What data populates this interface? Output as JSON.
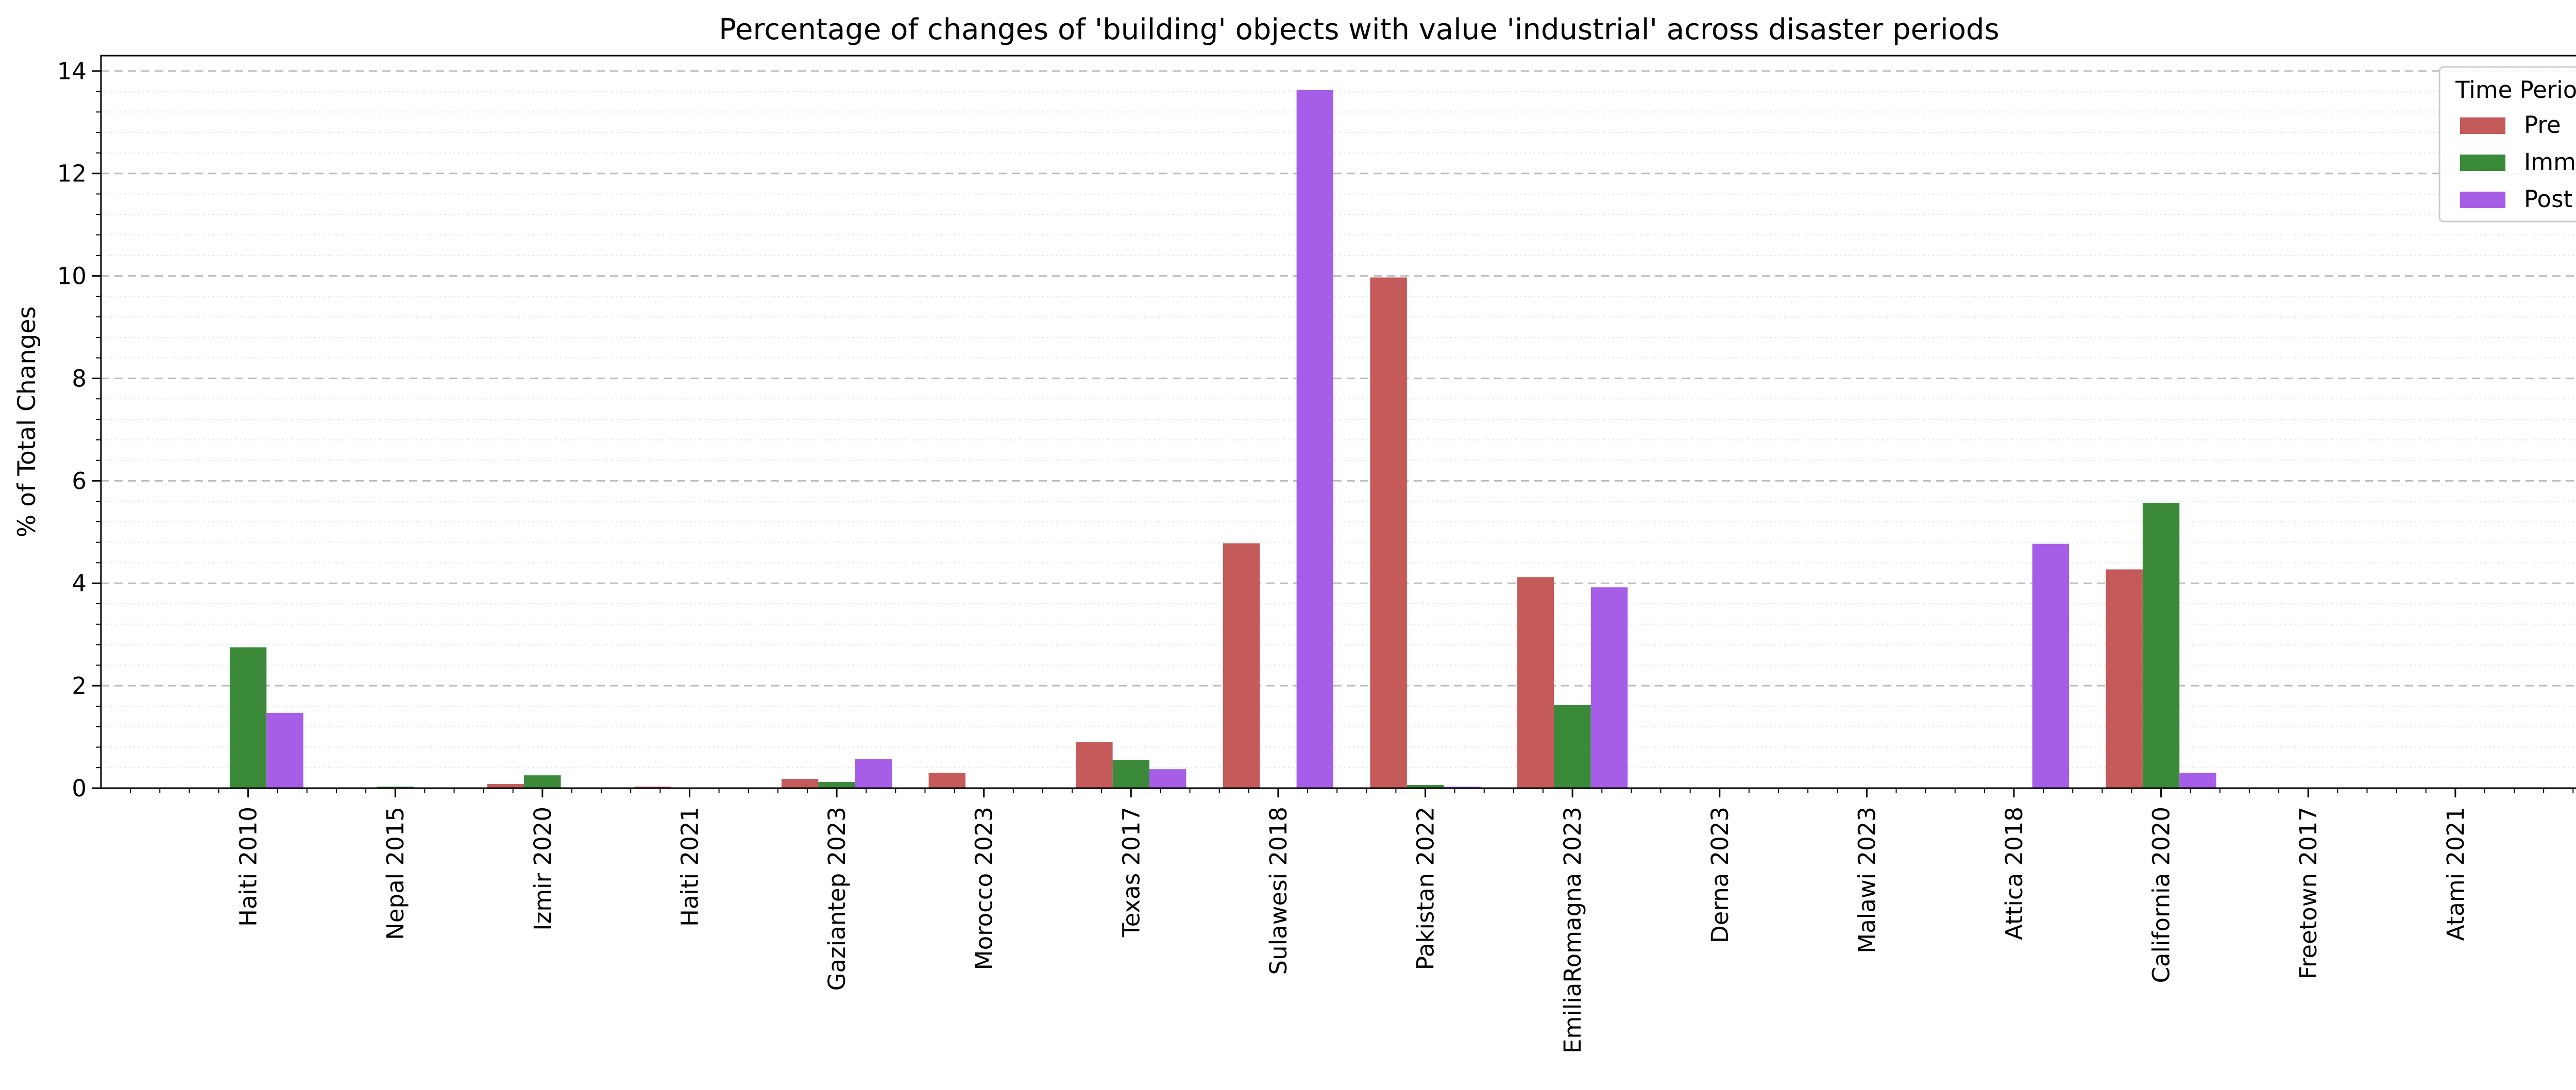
{
  "chart_data": {
    "type": "bar",
    "title": "Percentage of changes of 'building' objects with value 'industrial' across disaster periods",
    "xlabel": "",
    "ylabel": "% of Total Changes",
    "ylim": [
      0,
      14.3
    ],
    "yticks": [
      0,
      2,
      4,
      6,
      8,
      10,
      12,
      14
    ],
    "grid": "horizontal dashed major, dotted minor",
    "legend": {
      "title": "Time Period",
      "position": "top-right"
    },
    "categories": [
      "Haiti 2010",
      "Nepal 2015",
      "Izmir 2020",
      "Haiti 2021",
      "Gaziantep 2023",
      "Morocco 2023",
      "Texas 2017",
      "Sulawesi 2018",
      "Pakistan 2022",
      "EmiliaRomagna 2023",
      "Derna 2023",
      "Malawi 2023",
      "Attica 2018",
      "California 2020",
      "Freetown 2017",
      "Atami 2021"
    ],
    "series": [
      {
        "name": "Pre",
        "color": "#c45a5a",
        "values": [
          0,
          0,
          0.08,
          0.03,
          0.18,
          0.3,
          0.9,
          4.78,
          9.97,
          4.12,
          0,
          0,
          0,
          4.27,
          0,
          0
        ]
      },
      {
        "name": "Imm",
        "color": "#3a8a3a",
        "values": [
          2.75,
          0.03,
          0.25,
          0,
          0.12,
          0,
          0.55,
          0,
          0.06,
          1.62,
          0,
          0,
          0,
          5.57,
          0,
          0
        ]
      },
      {
        "name": "Post",
        "color": "#a65ee8",
        "values": [
          1.47,
          0,
          0,
          0,
          0.57,
          0,
          0.37,
          13.63,
          0.03,
          3.92,
          0,
          0,
          4.77,
          0.3,
          0,
          0
        ]
      }
    ]
  }
}
